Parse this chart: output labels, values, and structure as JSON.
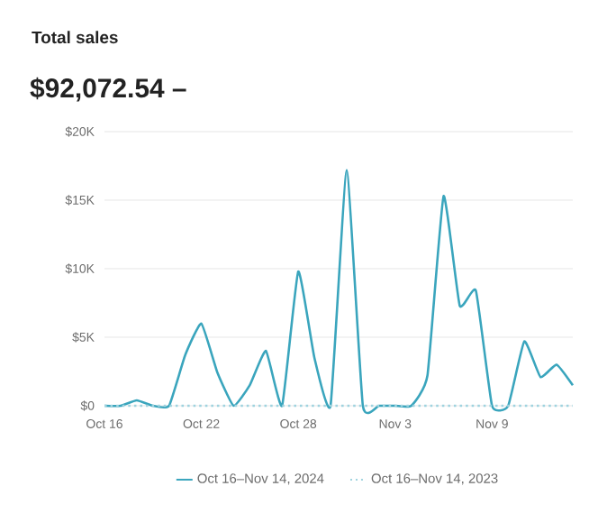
{
  "chart_data": {
    "type": "line",
    "title": "Total sales",
    "subtitle": "$92,072.54 –",
    "x": [
      "2024-10-16",
      "2024-10-17",
      "2024-10-18",
      "2024-10-19",
      "2024-10-20",
      "2024-10-21",
      "2024-10-22",
      "2024-10-23",
      "2024-10-24",
      "2024-10-25",
      "2024-10-26",
      "2024-10-27",
      "2024-10-28",
      "2024-10-29",
      "2024-10-30",
      "2024-10-31",
      "2024-11-01",
      "2024-11-02",
      "2024-11-03",
      "2024-11-04",
      "2024-11-05",
      "2024-11-06",
      "2024-11-07",
      "2024-11-08",
      "2024-11-09",
      "2024-11-10",
      "2024-11-11",
      "2024-11-12",
      "2024-11-13",
      "2024-11-14"
    ],
    "series": [
      {
        "name": "Oct 16–Nov 14, 2024",
        "color": "#3aa5bd",
        "line_style": "solid",
        "values": [
          0,
          0,
          400,
          0,
          0,
          3700,
          6000,
          2400,
          0,
          1500,
          4000,
          0,
          9800,
          3500,
          0,
          17200,
          0,
          0,
          0,
          0,
          2200,
          15300,
          7300,
          8400,
          0,
          0,
          4700,
          2100,
          3000,
          1500
        ]
      },
      {
        "name": "Oct 16–Nov 14, 2023",
        "color": "#9fd3df",
        "line_style": "dotted",
        "values": [
          0,
          0,
          0,
          0,
          0,
          0,
          0,
          0,
          0,
          0,
          0,
          0,
          0,
          0,
          0,
          0,
          0,
          0,
          0,
          0,
          0,
          0,
          0,
          0,
          0,
          0,
          0,
          0,
          0,
          0
        ]
      }
    ],
    "xlim": [
      "2024-10-16",
      "2024-11-14"
    ],
    "xticks": [
      {
        "value": "2024-10-16",
        "label": "Oct 16"
      },
      {
        "value": "2024-10-22",
        "label": "Oct 22"
      },
      {
        "value": "2024-10-28",
        "label": "Oct 28"
      },
      {
        "value": "2024-11-03",
        "label": "Nov 3"
      },
      {
        "value": "2024-11-09",
        "label": "Nov 9"
      }
    ],
    "ylim": [
      0,
      20000
    ],
    "yticks": [
      {
        "value": 0,
        "label": "$0"
      },
      {
        "value": 5000,
        "label": "$5K"
      },
      {
        "value": 10000,
        "label": "$10K"
      },
      {
        "value": 15000,
        "label": "$15K"
      },
      {
        "value": 20000,
        "label": "$20K"
      }
    ],
    "grid": "y",
    "legend": "bottom",
    "marker": "none"
  }
}
